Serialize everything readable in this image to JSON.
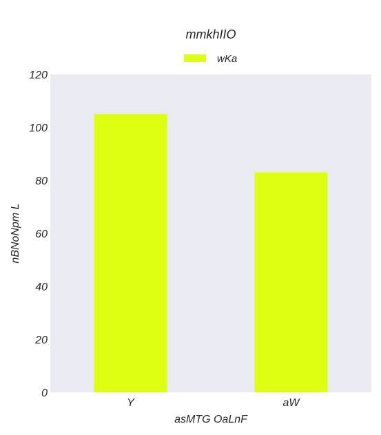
{
  "chart_data": {
    "type": "bar",
    "title": "mmkhIIO",
    "xlabel": "asMTG  OaLnF",
    "ylabel": "nBNoNpm L",
    "categories": [
      "Y",
      "aW"
    ],
    "series": [
      {
        "name": "wKa",
        "values": [
          105,
          83
        ],
        "color": "#dfff12"
      }
    ],
    "ylim": [
      0,
      120
    ],
    "yticks": [
      0,
      20,
      40,
      60,
      80,
      100,
      120
    ],
    "grid": false,
    "legend": "top-center",
    "plot_background": "#eaeaf2"
  }
}
